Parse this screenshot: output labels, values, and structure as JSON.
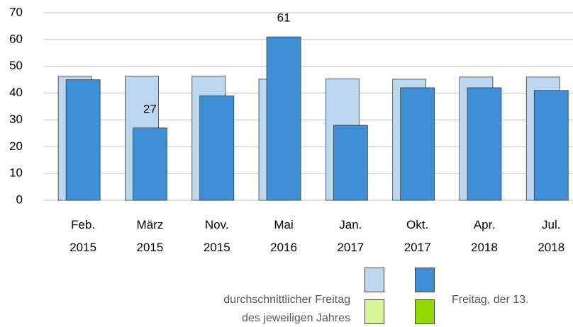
{
  "chart_data": {
    "type": "bar",
    "categories": [
      "Feb.\n2015",
      "März\n2015",
      "Nov.\n2015",
      "Mai\n2016",
      "Jan.\n2017",
      "Okt.\n2017",
      "Apr.\n2018",
      "Jul.\n2018"
    ],
    "series": [
      {
        "name": "durchschnittlicher Freitag\ndes jeweiligen Jahres",
        "color": "#bdd7ee",
        "legend_second_color": "#d9f59a",
        "values": [
          46.3,
          46.3,
          46.3,
          45.2,
          45.3,
          45.2,
          46,
          46
        ]
      },
      {
        "name": "Freitag, der 13.",
        "color": "#3f8fd6",
        "legend_second_color": "#92d900",
        "values": [
          45,
          27,
          39,
          61,
          28,
          42,
          42,
          41
        ],
        "value_labels": [
          null,
          "27",
          null,
          "61",
          null,
          null,
          null,
          null
        ]
      }
    ],
    "ylim": [
      0,
      70
    ],
    "yticks": [
      0,
      10,
      20,
      30,
      40,
      50,
      60,
      70
    ],
    "grid": true
  }
}
